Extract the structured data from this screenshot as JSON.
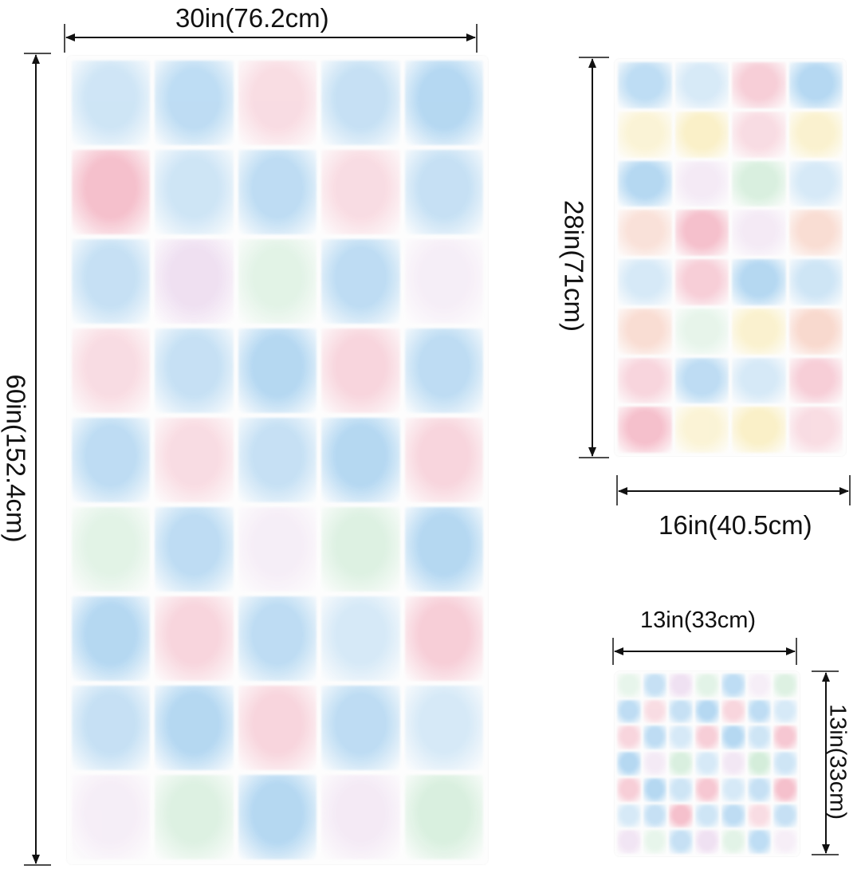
{
  "towels": [
    {
      "id": "bath",
      "width_label": "30in(76.2cm)",
      "height_label": "60in(152.4cm)",
      "cols": 5,
      "rows": 9
    },
    {
      "id": "hand",
      "width_label": "16in(40.5cm)",
      "height_label": "28in(71cm)",
      "cols": 4,
      "rows": 8
    },
    {
      "id": "wash",
      "width_label": "13in(33cm)",
      "height_label": "13in(33cm)",
      "cols": 7,
      "rows": 7
    }
  ],
  "palette": {
    "pink": "#f4b6c4",
    "blue": "#a9d2f0",
    "yellow": "#f9ecb7",
    "green": "#cdebd5",
    "lavender": "#eddcf0",
    "peach": "#f8d3c6"
  }
}
